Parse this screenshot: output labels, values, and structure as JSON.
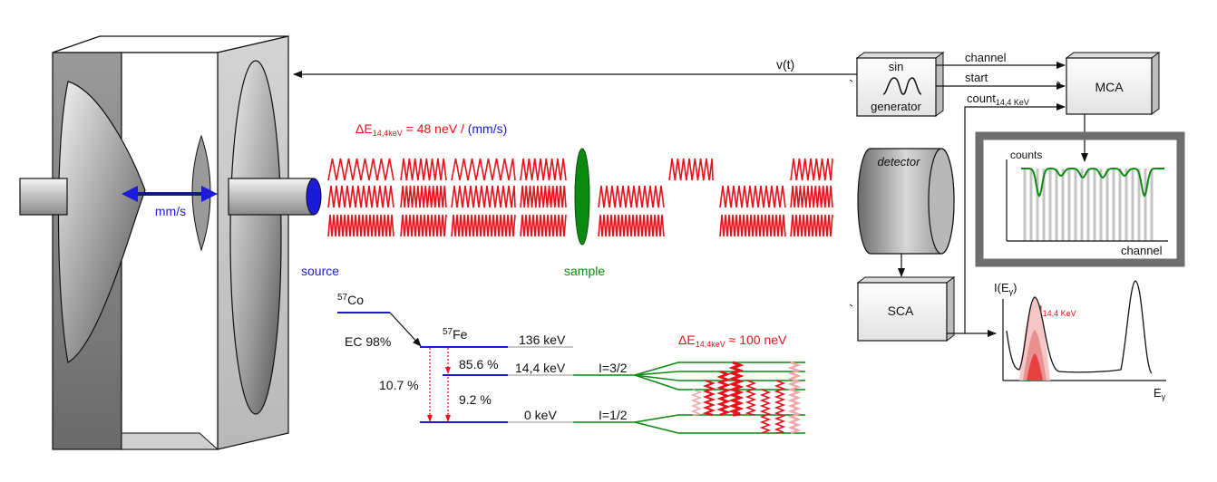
{
  "labels": {
    "vt": "v(t)",
    "sin": "sin",
    "generator": "generator",
    "channel": "channel",
    "start": "start",
    "count": "count",
    "count_sub": "14,4 KeV",
    "mca": "MCA",
    "detector": "detector",
    "sca": "SCA",
    "mms": "mm/s",
    "source": "source",
    "sample": "sample",
    "delta_e_prefix": "ΔE",
    "delta_e_sub": "14,4keV",
    "delta_e_red": " = 48 neV / ",
    "delta_e_blue": "(mm/s)",
    "delta_e2_prefix": "ΔE",
    "delta_e2_sub": "14,4keV",
    "delta_e2_rest": " ≈ 100 neV",
    "counts_axis": "counts",
    "channel_axis": "channel",
    "spec_y_prefix": "I(E",
    "spec_y_sub": "γ",
    "spec_y_suffix": ")",
    "spec_x": "E",
    "spec_x_sub": "γ",
    "spec_peak_prefix": "I",
    "spec_peak_sub": "14,4 KeV"
  },
  "levels": {
    "co_sup": "57",
    "co": "Co",
    "fe_sup": "57",
    "fe": "Fe",
    "ec": "EC 98%",
    "pct_856": "85.6 %",
    "pct_107": "10.7 %",
    "pct_92": "9.2 %",
    "e136": "136 keV",
    "e144": "14,4 keV",
    "e0": "0 keV",
    "i32": "I=3/2",
    "i12": "I=1/2"
  },
  "colors": {
    "red": "#e8101a",
    "blue": "#1a1ad8",
    "green": "#0a8a10",
    "dark": "#111111",
    "frame_gray": "#6e6e6e"
  }
}
